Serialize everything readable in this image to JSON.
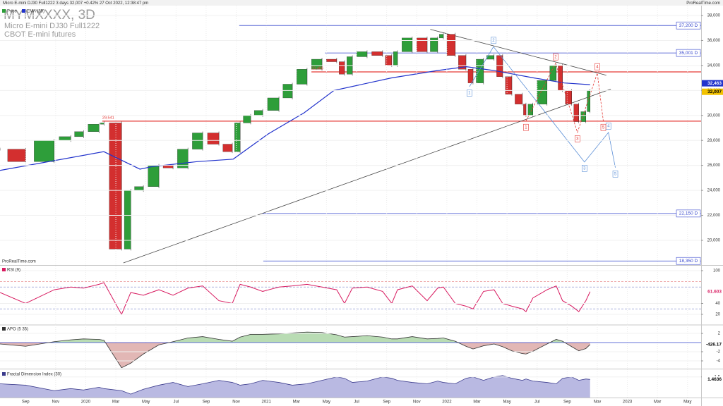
{
  "header": {
    "title": "Micro E-mini DJ30 Full1222 3 days 32,007 +0.42% 27 Oct 2022, 12:38:47 pm",
    "brand": "ProRealTime.com"
  },
  "chart_data": [
    {
      "type": "candlestick",
      "title": "MYMXXXX, 3D",
      "subtitle": "Micro E-mini DJ30 Full1222",
      "note": "CBOT E-mini futures",
      "watermark": "ProRealTime.com",
      "x": [
        -1.7,
        0,
        1.9,
        3,
        3.85,
        4.88,
        5.21,
        6.38,
        6.99,
        7.83,
        8.86,
        9.8,
        10.79,
        11.77,
        12.85,
        13.74,
        14.26,
        14.96,
        15.76,
        16.84,
        17.73,
        18.71,
        19.7,
        20.68,
        21.2,
        21.72,
        22.7,
        23.73,
        24.34,
        24.72,
        25.7,
        26.69,
        27.39,
        27.77,
        28.56,
        29.27,
        29.74,
        30.44,
        31.14,
        31.71,
        32.32,
        33.02,
        33.26,
        33.72,
        34.66,
        35.27,
        35.69,
        36.3,
        36.77,
        37.24,
        37.52
      ],
      "xlim": [
        -1.7,
        44.9
      ],
      "xticks": [
        {
          "value": 0,
          "label": "Sep"
        },
        {
          "value": 2,
          "label": "Nov"
        },
        {
          "value": 4,
          "label": "2020"
        },
        {
          "value": 6,
          "label": "Mar"
        },
        {
          "value": 8,
          "label": "May"
        },
        {
          "value": 10,
          "label": "Jul"
        },
        {
          "value": 12,
          "label": "Sep"
        },
        {
          "value": 14,
          "label": "Nov"
        },
        {
          "value": 16,
          "label": "2021"
        },
        {
          "value": 18,
          "label": "Mar"
        },
        {
          "value": 20,
          "label": "May"
        },
        {
          "value": 22,
          "label": "Jul"
        },
        {
          "value": 24,
          "label": "Sep"
        },
        {
          "value": 26,
          "label": "Nov"
        },
        {
          "value": 28,
          "label": "2022"
        },
        {
          "value": 30,
          "label": "Mar"
        },
        {
          "value": 32,
          "label": "May"
        },
        {
          "value": 34,
          "label": "Jul"
        },
        {
          "value": 36,
          "label": "Sep"
        },
        {
          "value": 38,
          "label": "Nov"
        },
        {
          "value": 40,
          "label": "2023"
        },
        {
          "value": 42,
          "label": "Mar"
        },
        {
          "value": 44,
          "label": "May"
        }
      ],
      "ylim": [
        18080,
        38790
      ],
      "yticks": [
        {
          "value": 20000,
          "label": "20,000"
        },
        {
          "value": 22000,
          "label": "22,000"
        },
        {
          "value": 24000,
          "label": "24,000"
        },
        {
          "value": 26000,
          "label": "26,000"
        },
        {
          "value": 28000,
          "label": "28,000"
        },
        {
          "value": 30000,
          "label": "30,000"
        },
        {
          "value": 32000,
          "label": "32,000"
        },
        {
          "value": 34000,
          "label": "34,000"
        },
        {
          "value": 36000,
          "label": "36,000"
        },
        {
          "value": 38000,
          "label": "38,000"
        }
      ],
      "series": [
        {
          "name": "Price",
          "color": "#2e9e3a",
          "down_color": "#d32f2f",
          "values": [
            27300,
            26300,
            28000,
            28300,
            28700,
            29300,
            29400,
            19300,
            24000,
            24300,
            26000,
            25800,
            27300,
            28600,
            27700,
            27100,
            29400,
            30000,
            30400,
            31400,
            32500,
            33700,
            34500,
            34300,
            33300,
            34700,
            35100,
            34800,
            34000,
            35100,
            36200,
            35100,
            36200,
            36500,
            34800,
            33700,
            32600,
            34500,
            34800,
            33100,
            31700,
            30900,
            30000,
            30900,
            32800,
            34000,
            32000,
            30900,
            29500,
            30300,
            32007
          ]
        },
        {
          "name": "EMA (89)",
          "color": "#2233cc",
          "x": [
            -1.7,
            5.2,
            7.6,
            8.4,
            11.4,
            13.8,
            16.1,
            18.5,
            20.5,
            24.3,
            27.4,
            29.3,
            31.1,
            33.8,
            35.8,
            37.52
          ],
          "values": [
            25600,
            27100,
            25700,
            25900,
            26300,
            26500,
            28500,
            30200,
            32000,
            33000,
            33600,
            33900,
            33600,
            33000,
            32600,
            32463
          ]
        }
      ],
      "levels": [
        {
          "value": 37200,
          "label": "37,200 D",
          "color": "#3344cc",
          "x_start": 14.2,
          "label_side": "right"
        },
        {
          "value": 35001,
          "label": "35,001 D",
          "color": "#3344cc",
          "x_start": 19.9,
          "label_side": "right"
        },
        {
          "value": 33486,
          "label": "33,486",
          "color": "#e53935",
          "x_start": 19.0,
          "label_side": "left"
        },
        {
          "value": 29541,
          "label": "29,541",
          "color": "#e53935",
          "x_start": 5.1,
          "label_side": "left"
        },
        {
          "value": 22150,
          "label": "22,150 D",
          "color": "#3344cc",
          "x_start": 15.7,
          "label_side": "right"
        },
        {
          "value": 18350,
          "label": "18,350 D",
          "color": "#3344cc",
          "x_start": 15.8,
          "label_side": "right"
        }
      ],
      "last_labels": [
        {
          "value": 32463,
          "label": "32,463",
          "color": "#2233cc"
        },
        {
          "value": 32007,
          "label": "32,007",
          "color": "#f2c200"
        }
      ],
      "trendlines": [
        {
          "x": [
            6.5,
            38.9
          ],
          "y": [
            18190,
            32110
          ]
        },
        {
          "x": [
            26.9,
            38.6
          ],
          "y": [
            36890,
            33220
          ]
        }
      ],
      "waves": [
        {
          "color": "#5b8fd6",
          "dashed": false,
          "x": [
            29.5,
            31.1,
            37.15,
            38.74,
            39.2
          ],
          "y": [
            32300,
            35500,
            26270,
            28640,
            25820
          ],
          "labels": [
            "1",
            "2",
            "3",
            "4",
            "5"
          ]
        },
        {
          "color": "#e53935",
          "dashed": true,
          "x": [
            33.26,
            35.23,
            36.68,
            38.0,
            38.4
          ],
          "y": [
            29550,
            34180,
            28640,
            33390,
            29550
          ],
          "labels": [
            "1",
            "2",
            "3",
            "4",
            "5"
          ]
        }
      ]
    },
    {
      "type": "line",
      "title": "RSI (9)",
      "color": "#d81b60",
      "x": [
        -1.7,
        0,
        1.9,
        3,
        3.85,
        4.88,
        5.21,
        6.38,
        6.99,
        7.83,
        8.86,
        9.8,
        10.79,
        11.77,
        12.85,
        13.74,
        14.26,
        14.96,
        15.76,
        16.84,
        17.73,
        18.71,
        19.7,
        20.68,
        21.2,
        21.72,
        22.7,
        23.73,
        24.34,
        24.72,
        25.7,
        26.69,
        27.39,
        27.77,
        28.56,
        29.27,
        29.74,
        30.44,
        31.14,
        31.71,
        32.32,
        33.02,
        33.26,
        33.72,
        34.66,
        35.27,
        35.69,
        36.3,
        36.77,
        37.24,
        37.52
      ],
      "values": [
        60,
        40,
        65,
        70,
        68,
        75,
        78,
        20,
        60,
        55,
        65,
        55,
        68,
        72,
        45,
        40,
        75,
        70,
        62,
        70,
        72,
        75,
        70,
        65,
        40,
        68,
        70,
        62,
        40,
        65,
        72,
        45,
        68,
        70,
        40,
        35,
        30,
        62,
        65,
        40,
        35,
        30,
        25,
        50,
        65,
        72,
        45,
        35,
        25,
        45,
        61.603
      ],
      "xlim": [
        -1.7,
        44.9
      ],
      "ylim": [
        1.9,
        107.7
      ],
      "yticks": [
        20,
        40,
        100
      ],
      "levels": [
        80,
        70,
        30,
        20
      ]
    },
    {
      "type": "area",
      "title": "APO (5 35)",
      "color": "#333333",
      "pos_color": "#b9dcb4",
      "neg_color": "#e2b7b5",
      "x": [
        -1.7,
        0,
        1.9,
        3,
        3.85,
        4.88,
        5.21,
        6.38,
        6.99,
        7.83,
        8.86,
        9.8,
        10.79,
        11.77,
        12.85,
        13.74,
        14.26,
        14.96,
        15.76,
        16.84,
        17.73,
        18.71,
        19.7,
        20.68,
        21.2,
        21.72,
        22.7,
        23.73,
        24.34,
        24.72,
        25.7,
        26.69,
        27.39,
        27.77,
        28.56,
        29.27,
        29.74,
        30.44,
        31.14,
        31.71,
        32.32,
        33.02,
        33.26,
        33.72,
        34.66,
        35.27,
        35.69,
        36.3,
        36.77,
        37.24,
        37.52
      ],
      "values": [
        -300,
        -800,
        200,
        600,
        800,
        700,
        500,
        -5500,
        -4500,
        -2500,
        -500,
        200,
        1000,
        1300,
        700,
        300,
        1200,
        1800,
        1800,
        1900,
        2100,
        2300,
        2200,
        1700,
        1200,
        1300,
        1500,
        1200,
        800,
        800,
        1300,
        800,
        900,
        1000,
        300,
        -800,
        -1400,
        -700,
        -300,
        -900,
        -1800,
        -2400,
        -2500,
        -1900,
        -300,
        700,
        300,
        -900,
        -1800,
        -1300,
        -426.17
      ],
      "xlim": [
        -1.7,
        44.9
      ],
      "ylim": [
        -5540,
        3700
      ],
      "yticks": [
        {
          "value": 2000,
          "label": "2"
        },
        {
          "value": -2000,
          "label": "-2"
        },
        {
          "value": -4000,
          "label": "-4"
        }
      ],
      "last_value": -426.17
    },
    {
      "type": "area",
      "title": "Fractal Dimension Index (30)",
      "color": "#3a3a8c",
      "fill": "#b9b9e2",
      "x": [
        -1.7,
        0,
        1.9,
        3,
        3.85,
        4.88,
        5.21,
        6.38,
        6.99,
        7.83,
        8.86,
        9.8,
        10.79,
        11.77,
        12.85,
        13.74,
        14.26,
        14.96,
        15.76,
        16.84,
        17.73,
        18.71,
        19.7,
        20.68,
        21.2,
        21.72,
        22.7,
        23.73,
        24.34,
        24.72,
        25.7,
        26.69,
        27.39,
        27.77,
        28.56,
        29.27,
        29.74,
        30.44,
        31.14,
        31.71,
        32.32,
        33.02,
        33.26,
        33.72,
        34.66,
        35.27,
        35.69,
        36.3,
        36.77,
        37.24,
        37.52
      ],
      "values": [
        1.4,
        1.38,
        1.3,
        1.33,
        1.31,
        1.35,
        1.33,
        1.3,
        1.25,
        1.32,
        1.38,
        1.42,
        1.36,
        1.4,
        1.45,
        1.42,
        1.38,
        1.4,
        1.45,
        1.42,
        1.38,
        1.4,
        1.45,
        1.5,
        1.48,
        1.42,
        1.44,
        1.5,
        1.48,
        1.45,
        1.42,
        1.4,
        1.44,
        1.42,
        1.4,
        1.48,
        1.5,
        1.45,
        1.5,
        1.52,
        1.48,
        1.45,
        1.47,
        1.44,
        1.42,
        1.4,
        1.48,
        1.5,
        1.45,
        1.47,
        1.4636
      ],
      "xlim": [
        -1.7,
        44.9
      ],
      "ylim": [
        1.2,
        1.6
      ],
      "yticks": [
        1.5
      ],
      "last_value": 1.4636
    }
  ]
}
